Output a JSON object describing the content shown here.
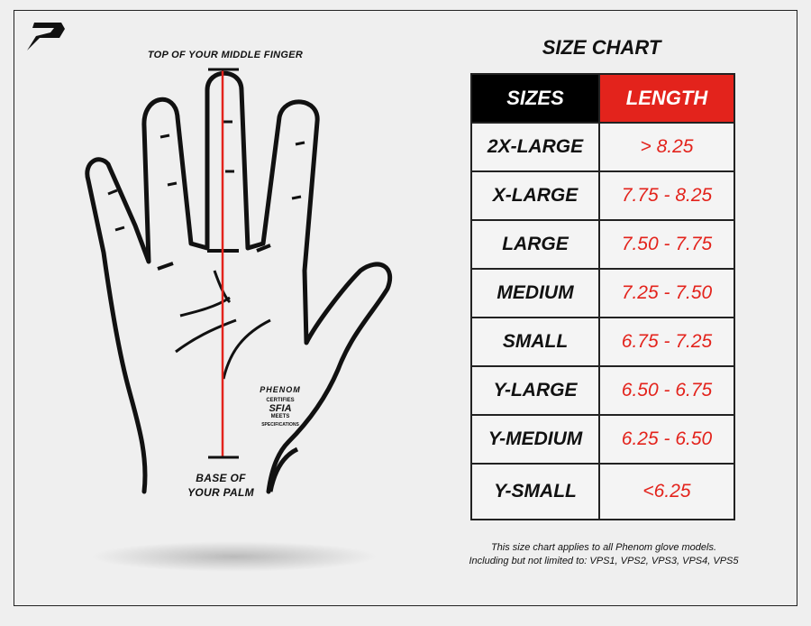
{
  "labels": {
    "top": "TOP OF YOUR MIDDLE FINGER",
    "base_line1": "BASE OF",
    "base_line2": "YOUR PALM"
  },
  "certification": {
    "brand": "PHENOM",
    "certifies": "CERTIFIES",
    "org": "SFIA",
    "meets": "MEETS",
    "specs": "SPECIFICATIONS"
  },
  "chart": {
    "title": "SIZE CHART",
    "headers": [
      "SIZES",
      "LENGTH"
    ],
    "rows": [
      {
        "size": "2X-LARGE",
        "length": "> 8.25"
      },
      {
        "size": "X-LARGE",
        "length": "7.75 - 8.25"
      },
      {
        "size": "LARGE",
        "length": "7.50 - 7.75"
      },
      {
        "size": "MEDIUM",
        "length": "7.25 - 7.50"
      },
      {
        "size": "SMALL",
        "length": "6.75 - 7.25"
      },
      {
        "size": "Y-LARGE",
        "length": "6.50 - 6.75"
      },
      {
        "size": "Y-MEDIUM",
        "length": "6.25 - 6.50"
      },
      {
        "size": "Y-SMALL",
        "length": "<6.25"
      }
    ]
  },
  "note": {
    "line1": "This size chart applies to all Phenom glove models.",
    "line2": "Including but not limited to: VPS1, VPS2, VPS3, VPS4, VPS5"
  },
  "colors": {
    "accent": "#e3231c",
    "header_dark": "#000000"
  }
}
